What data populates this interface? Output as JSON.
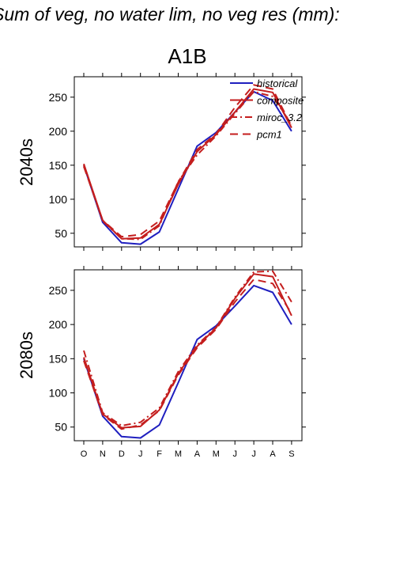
{
  "figure": {
    "title": "Sum of veg, no water lim, no veg res (mm):",
    "subtitle": "A1B"
  },
  "legend": [
    {
      "name": "historical",
      "color": "#1f1fbf",
      "dash": "solid"
    },
    {
      "name": "composite",
      "color": "#c41e1e",
      "dash": "solid"
    },
    {
      "name": "miroc_3.2",
      "color": "#c41e1e",
      "dash": "dashdot"
    },
    {
      "name": "pcm1",
      "color": "#c41e1e",
      "dash": "longdash"
    }
  ],
  "chart_data": [
    {
      "type": "line",
      "row_label": "2040s",
      "categories": [
        "O",
        "N",
        "D",
        "J",
        "F",
        "M",
        "A",
        "M",
        "J",
        "J",
        "A",
        "S"
      ],
      "ylim": [
        30,
        280
      ],
      "yticks": [
        50,
        100,
        150,
        200,
        250
      ],
      "legend_position": "top-right",
      "series": [
        {
          "name": "historical",
          "values": [
            150,
            66,
            36,
            34,
            52,
            115,
            178,
            198,
            228,
            258,
            245,
            200
          ]
        },
        {
          "name": "composite",
          "values": [
            152,
            69,
            42,
            43,
            63,
            122,
            170,
            195,
            228,
            262,
            257,
            205
          ]
        },
        {
          "name": "miroc_3.2",
          "values": [
            150,
            68,
            42,
            41,
            61,
            126,
            165,
            193,
            226,
            258,
            251,
            210
          ]
        },
        {
          "name": "pcm1",
          "values": [
            148,
            69,
            45,
            48,
            68,
            125,
            173,
            196,
            235,
            268,
            262,
            207
          ]
        }
      ]
    },
    {
      "type": "line",
      "row_label": "2080s",
      "categories": [
        "O",
        "N",
        "D",
        "J",
        "F",
        "M",
        "A",
        "M",
        "J",
        "J",
        "A",
        "S"
      ],
      "ylim": [
        30,
        280
      ],
      "yticks": [
        50,
        100,
        150,
        200,
        250
      ],
      "series": [
        {
          "name": "historical",
          "values": [
            150,
            66,
            36,
            34,
            53,
            115,
            178,
            198,
            227,
            257,
            247,
            200
          ]
        },
        {
          "name": "composite",
          "values": [
            152,
            69,
            49,
            51,
            75,
            128,
            168,
            195,
            238,
            274,
            270,
            213
          ]
        },
        {
          "name": "miroc_3.2",
          "values": [
            162,
            71,
            52,
            57,
            78,
            131,
            170,
            196,
            240,
            277,
            278,
            233
          ]
        },
        {
          "name": "pcm1",
          "values": [
            147,
            68,
            47,
            53,
            74,
            126,
            166,
            193,
            233,
            266,
            260,
            216
          ]
        }
      ]
    }
  ]
}
